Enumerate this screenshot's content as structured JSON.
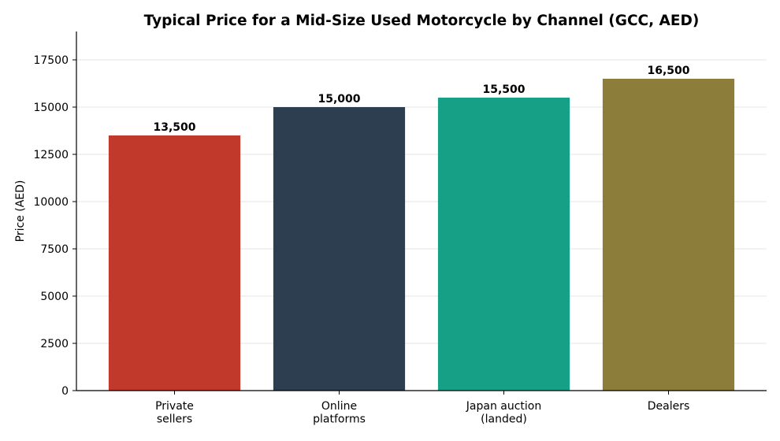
{
  "chart_data": {
    "type": "bar",
    "title": "Typical Price for a Mid-Size Used Motorcycle by Channel (GCC, AED)",
    "xlabel": "",
    "ylabel": "Price (AED)",
    "ylim": [
      0,
      19000
    ],
    "yticks": [
      0,
      2500,
      5000,
      7500,
      10000,
      12500,
      15000,
      17500
    ],
    "grid": "horizontal",
    "categories": [
      [
        "Private",
        "sellers"
      ],
      [
        "Online",
        "platforms"
      ],
      [
        "Japan auction",
        "(landed)"
      ],
      [
        "Dealers"
      ]
    ],
    "values": [
      13500,
      15000,
      15500,
      16500
    ],
    "value_labels": [
      "13,500",
      "15,000",
      "15,500",
      "16,500"
    ],
    "colors": [
      "#c0392b",
      "#2c3e50",
      "#16a085",
      "#8c7d3a"
    ]
  }
}
